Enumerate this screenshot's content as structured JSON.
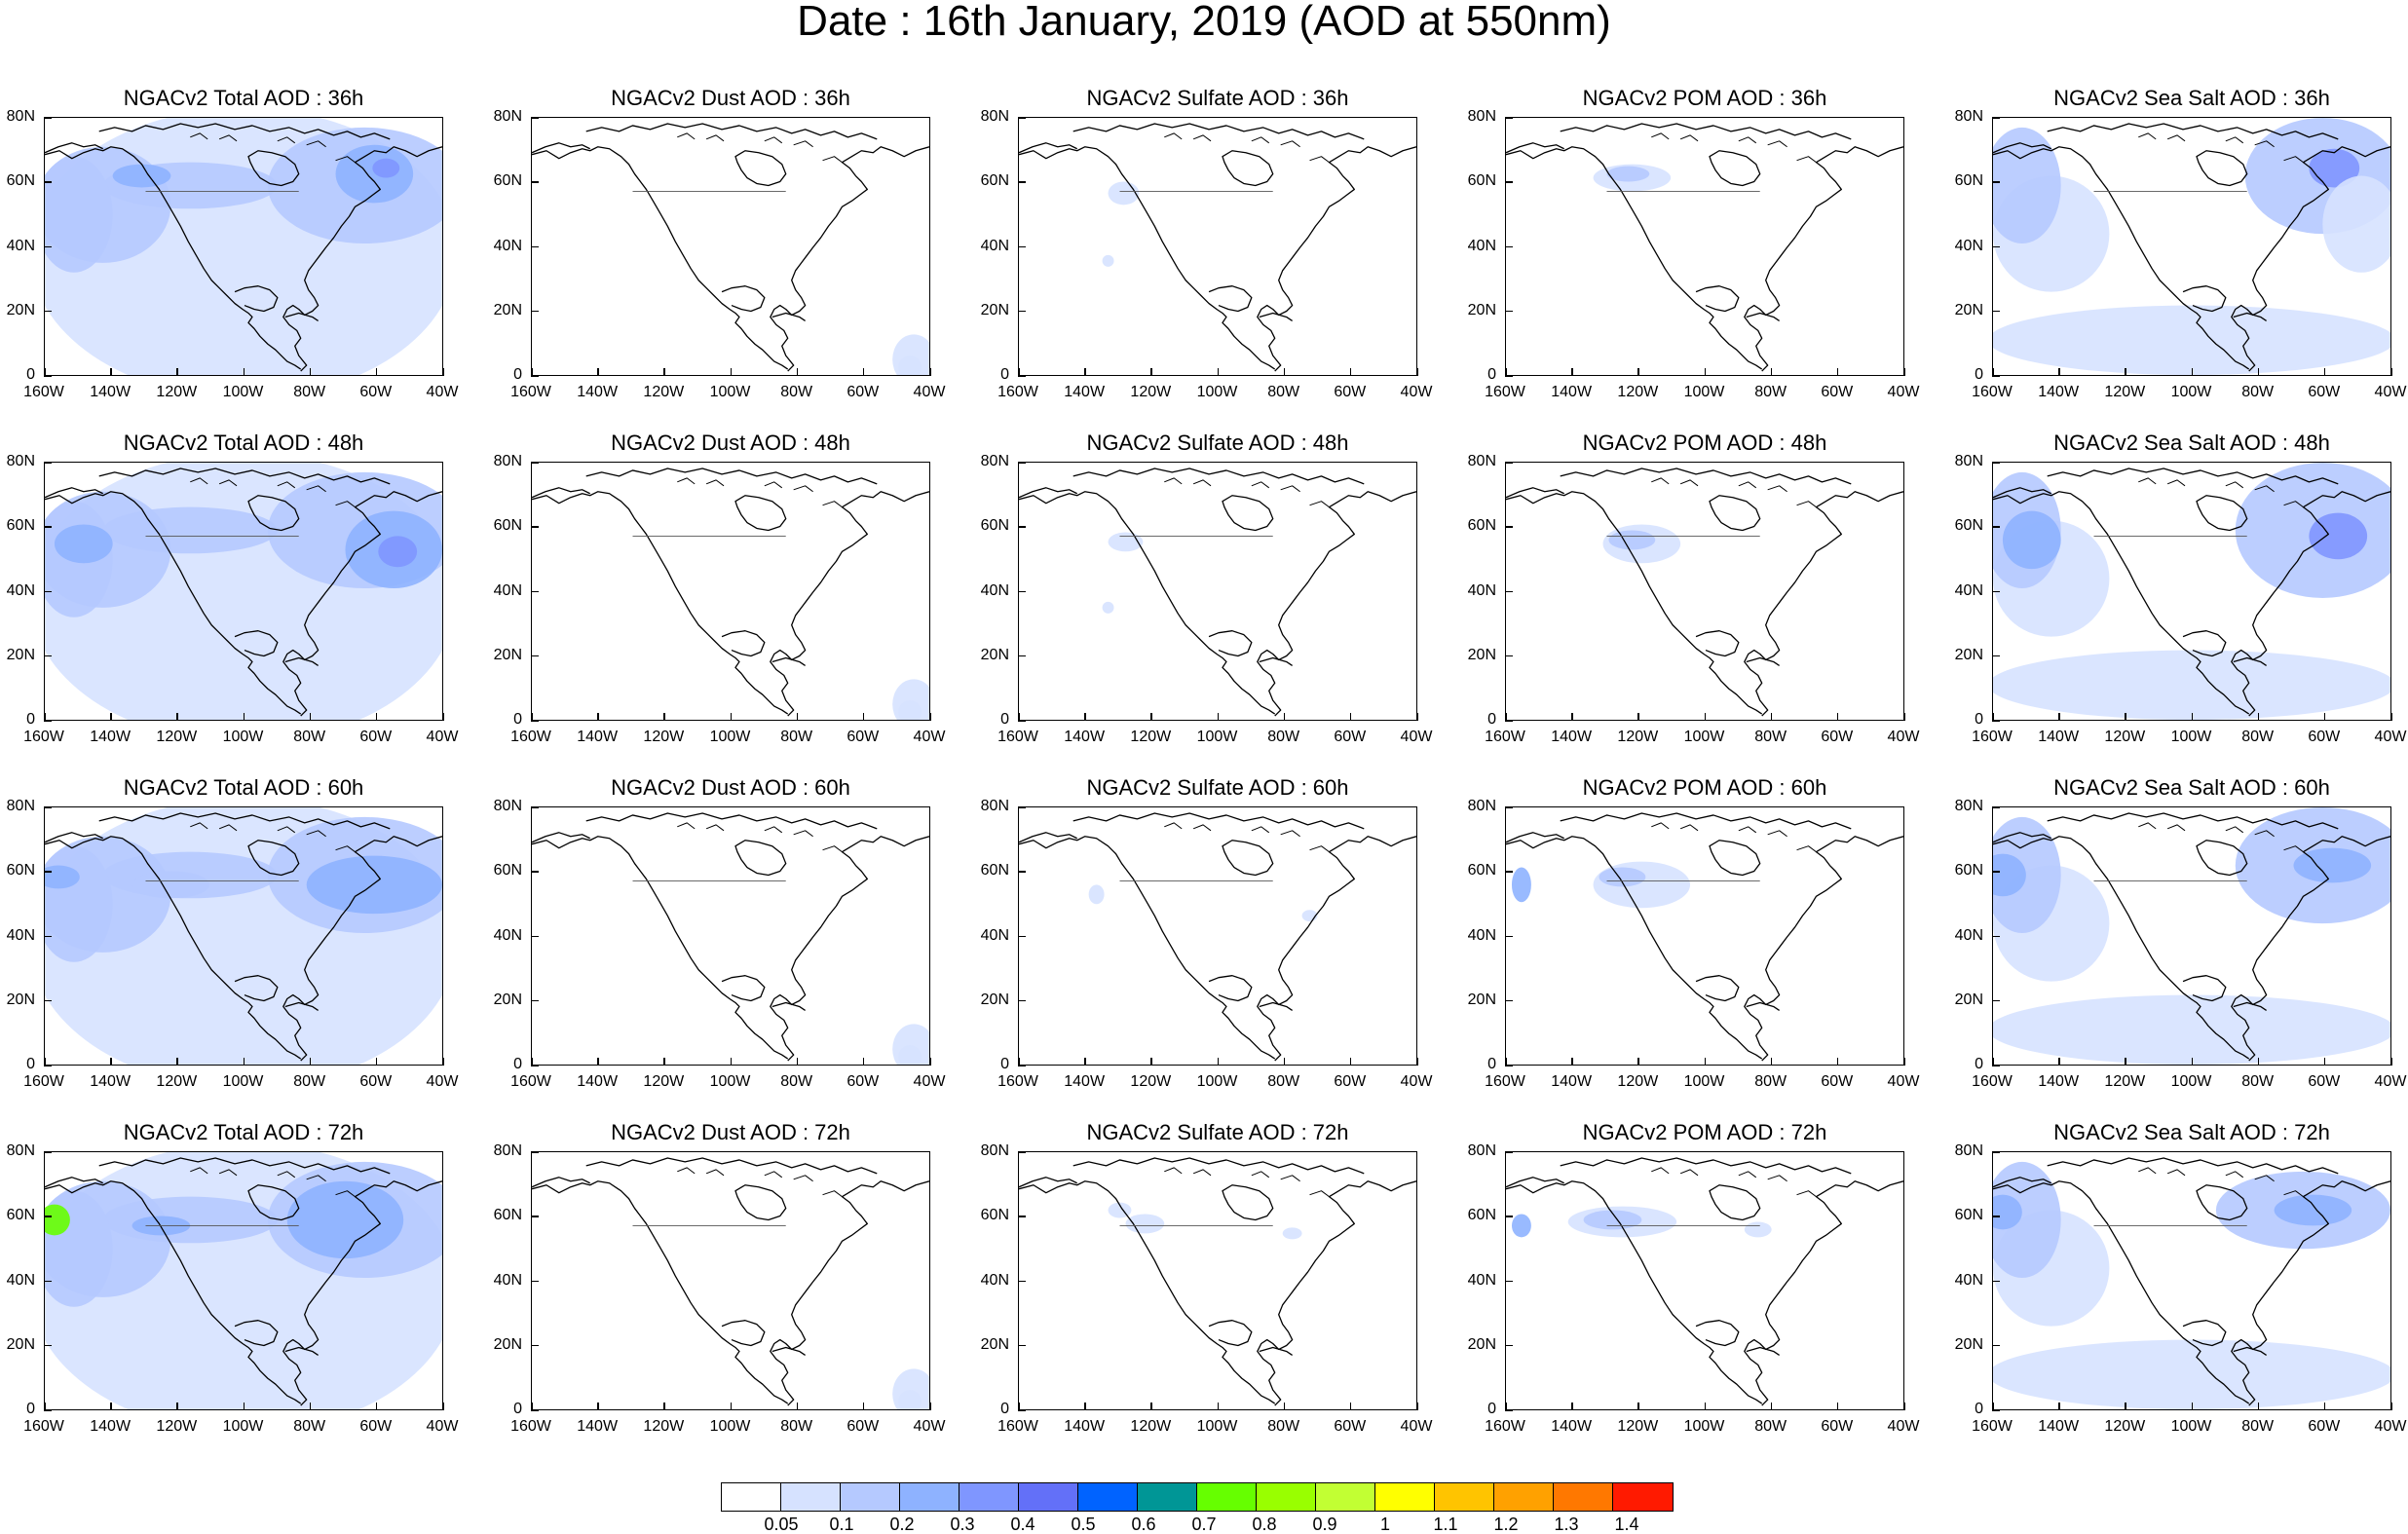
{
  "title": "Date : 16th January, 2019 (AOD at 550nm)",
  "y_axis_labels": [
    "80N",
    "60N",
    "40N",
    "20N",
    "0"
  ],
  "x_axis_labels": [
    "160W",
    "140W",
    "120W",
    "100W",
    "80W",
    "60W",
    "40W"
  ],
  "panels": [
    [
      {
        "title": "NGACv2 Total AOD : 36h",
        "species": "total"
      },
      {
        "title": "NGACv2 Dust AOD : 36h",
        "species": "dust"
      },
      {
        "title": "NGACv2 Sulfate AOD : 36h",
        "species": "sulfate"
      },
      {
        "title": "NGACv2 POM AOD : 36h",
        "species": "pom"
      },
      {
        "title": "NGACv2 Sea Salt AOD : 36h",
        "species": "seasalt"
      }
    ],
    [
      {
        "title": "NGACv2 Total AOD : 48h",
        "species": "total"
      },
      {
        "title": "NGACv2 Dust AOD : 48h",
        "species": "dust"
      },
      {
        "title": "NGACv2 Sulfate AOD : 48h",
        "species": "sulfate"
      },
      {
        "title": "NGACv2 POM AOD : 48h",
        "species": "pom"
      },
      {
        "title": "NGACv2 Sea Salt AOD : 48h",
        "species": "seasalt"
      }
    ],
    [
      {
        "title": "NGACv2 Total AOD : 60h",
        "species": "total"
      },
      {
        "title": "NGACv2 Dust AOD : 60h",
        "species": "dust"
      },
      {
        "title": "NGACv2 Sulfate AOD : 60h",
        "species": "sulfate"
      },
      {
        "title": "NGACv2 POM AOD : 60h",
        "species": "pom"
      },
      {
        "title": "NGACv2 Sea Salt AOD : 60h",
        "species": "seasalt"
      }
    ],
    [
      {
        "title": "NGACv2 Total AOD : 72h",
        "species": "total"
      },
      {
        "title": "NGACv2 Dust AOD : 72h",
        "species": "dust"
      },
      {
        "title": "NGACv2 Sulfate AOD : 72h",
        "species": "sulfate"
      },
      {
        "title": "NGACv2 POM AOD : 72h",
        "species": "pom"
      },
      {
        "title": "NGACv2 Sea Salt  AOD : 72h",
        "species": "seasalt"
      }
    ]
  ],
  "colorbar": {
    "colors": [
      "#ffffff",
      "#d6e2ff",
      "#b5c9ff",
      "#8eb2ff",
      "#7f96ff",
      "#6370f8",
      "#0063ff",
      "#009696",
      "#66ff00",
      "#99ff00",
      "#c2ff33",
      "#ffff00",
      "#ffc400",
      "#ffa100",
      "#ff7800",
      "#ff1a00"
    ],
    "labels": [
      "0.05",
      "0.1",
      "0.2",
      "0.3",
      "0.4",
      "0.5",
      "0.6",
      "0.7",
      "0.8",
      "0.9",
      "1",
      "1.1",
      "1.2",
      "1.3",
      "1.4"
    ]
  }
}
